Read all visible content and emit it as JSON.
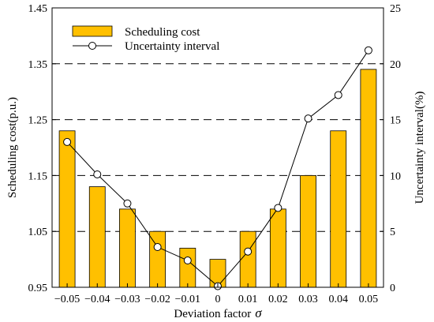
{
  "chart_data": {
    "type": "bar",
    "categories": [
      "−0.05",
      "−0.04",
      "−0.03",
      "−0.02",
      "−0.01",
      "0",
      "0.01",
      "0.02",
      "0.03",
      "0.04",
      "0.05"
    ],
    "series": [
      {
        "name": "Scheduling cost",
        "type": "bar",
        "axis": "left",
        "color": "#FFC000",
        "values": [
          1.23,
          1.13,
          1.09,
          1.05,
          1.02,
          1.0,
          1.05,
          1.09,
          1.15,
          1.23,
          1.34
        ]
      },
      {
        "name": "Uncertainty interval",
        "type": "line",
        "axis": "right",
        "color": "#000000",
        "marker": "open-circle",
        "values": [
          13.0,
          10.1,
          7.5,
          3.6,
          2.4,
          0.1,
          3.2,
          7.1,
          15.1,
          17.2,
          21.2
        ]
      }
    ],
    "xlabel": "Deviation factor",
    "xlabel_symbol": "σ",
    "ylabel_left": "Scheduling cost(p.u.)",
    "ylabel_right": "Uncertainty interval(%)",
    "ylim_left": [
      0.95,
      1.45
    ],
    "yticks_left": [
      "0.95",
      "1.05",
      "1.15",
      "1.25",
      "1.35",
      "1.45"
    ],
    "ylim_right": [
      0,
      25
    ],
    "yticks_right": [
      "0",
      "5",
      "10",
      "15",
      "20",
      "25"
    ],
    "grid": "horizontal-dashed",
    "legend_position": "top-left"
  }
}
